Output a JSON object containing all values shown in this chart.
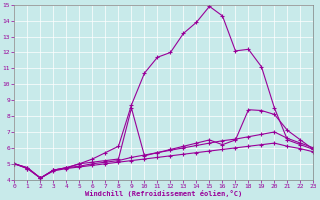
{
  "xlabel": "Windchill (Refroidissement éolien,°C)",
  "bg_color": "#c8eaea",
  "line_color": "#990099",
  "grid_color": "#ffffff",
  "xlim": [
    0,
    23
  ],
  "ylim": [
    4,
    15
  ],
  "yticks": [
    4,
    5,
    6,
    7,
    8,
    9,
    10,
    11,
    12,
    13,
    14,
    15
  ],
  "xticks": [
    0,
    1,
    2,
    3,
    4,
    5,
    6,
    7,
    8,
    9,
    10,
    11,
    12,
    13,
    14,
    15,
    16,
    17,
    18,
    19,
    20,
    21,
    22,
    23
  ],
  "lines": [
    {
      "x": [
        0,
        1,
        2,
        3,
        4,
        5,
        6,
        7,
        8,
        9,
        10,
        11,
        12,
        13,
        14,
        15,
        16,
        17,
        18,
        19,
        20,
        21,
        22,
        23
      ],
      "y": [
        5.0,
        4.7,
        4.1,
        4.6,
        4.75,
        5.0,
        5.3,
        5.7,
        6.1,
        8.7,
        10.7,
        11.7,
        12.0,
        13.2,
        13.9,
        14.9,
        14.3,
        12.1,
        12.2,
        11.1,
        8.5,
        6.5,
        6.2,
        5.9
      ]
    },
    {
      "x": [
        0,
        1,
        2,
        3,
        4,
        5,
        6,
        7,
        8,
        9,
        10,
        11,
        12,
        13,
        14,
        15,
        16,
        17,
        18,
        19,
        20,
        21,
        22,
        23
      ],
      "y": [
        5.0,
        4.7,
        4.1,
        4.6,
        4.75,
        5.0,
        5.1,
        5.2,
        5.3,
        8.5,
        5.5,
        5.7,
        5.9,
        6.1,
        6.3,
        6.5,
        6.2,
        6.5,
        8.4,
        8.35,
        8.1,
        7.1,
        6.5,
        5.9
      ]
    },
    {
      "x": [
        0,
        1,
        2,
        3,
        4,
        5,
        6,
        7,
        8,
        9,
        10,
        11,
        12,
        13,
        14,
        15,
        16,
        17,
        18,
        19,
        20,
        21,
        22,
        23
      ],
      "y": [
        5.0,
        4.75,
        4.1,
        4.6,
        4.75,
        4.85,
        5.0,
        5.1,
        5.2,
        5.4,
        5.55,
        5.7,
        5.85,
        6.0,
        6.15,
        6.3,
        6.45,
        6.55,
        6.7,
        6.85,
        7.0,
        6.6,
        6.3,
        6.0
      ]
    },
    {
      "x": [
        0,
        1,
        2,
        3,
        4,
        5,
        6,
        7,
        8,
        9,
        10,
        11,
        12,
        13,
        14,
        15,
        16,
        17,
        18,
        19,
        20,
        21,
        22,
        23
      ],
      "y": [
        5.0,
        4.75,
        4.1,
        4.55,
        4.7,
        4.8,
        4.9,
        5.0,
        5.1,
        5.2,
        5.3,
        5.4,
        5.5,
        5.6,
        5.7,
        5.8,
        5.9,
        6.0,
        6.1,
        6.2,
        6.3,
        6.1,
        5.95,
        5.75
      ]
    }
  ]
}
